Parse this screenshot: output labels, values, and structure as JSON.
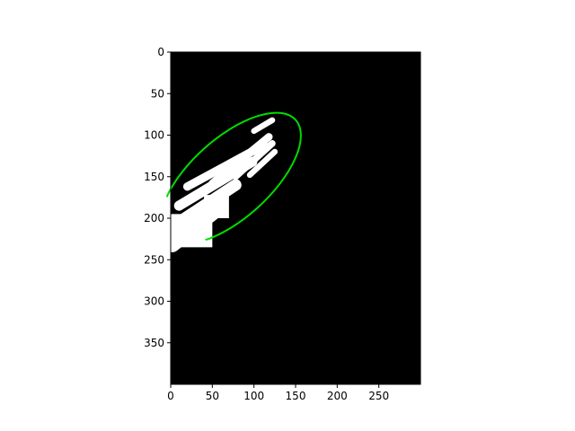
{
  "chart_data": {
    "type": "image",
    "title": "",
    "xlabel": "",
    "ylabel": "",
    "image_size": {
      "width": 300,
      "height": 400
    },
    "xlim": [
      0,
      300
    ],
    "ylim": [
      400,
      0
    ],
    "x_ticks": [
      0,
      50,
      100,
      150,
      200,
      250
    ],
    "y_ticks": [
      0,
      50,
      100,
      150,
      200,
      250,
      300,
      350
    ],
    "grid": false,
    "background_color": "#000000",
    "mask_color": "#ffffff",
    "ellipse": {
      "color": "#00dd00",
      "center": [
        72,
        152
      ],
      "semi_major": 105,
      "semi_minor": 48,
      "angle_deg": -42
    },
    "mask_stripes": [
      {
        "x1": 2,
        "y1": 232,
        "x2": 55,
        "y2": 190,
        "w": 18
      },
      {
        "x1": 5,
        "y1": 208,
        "x2": 78,
        "y2": 160,
        "w": 14
      },
      {
        "x1": 10,
        "y1": 185,
        "x2": 98,
        "y2": 132,
        "w": 12
      },
      {
        "x1": 20,
        "y1": 162,
        "x2": 112,
        "y2": 112,
        "w": 10
      },
      {
        "x1": 50,
        "y1": 158,
        "x2": 118,
        "y2": 102,
        "w": 9
      },
      {
        "x1": 78,
        "y1": 150,
        "x2": 122,
        "y2": 110,
        "w": 8
      },
      {
        "x1": 95,
        "y1": 148,
        "x2": 125,
        "y2": 120,
        "w": 7
      },
      {
        "x1": 100,
        "y1": 95,
        "x2": 122,
        "y2": 82,
        "w": 7
      },
      {
        "x1": 65,
        "y1": 145,
        "x2": 100,
        "y2": 118,
        "w": 7
      }
    ],
    "mask_blocks": [
      {
        "x": 0,
        "y": 195,
        "w": 50,
        "h": 40
      },
      {
        "x": 40,
        "y": 172,
        "w": 30,
        "h": 28
      }
    ]
  }
}
